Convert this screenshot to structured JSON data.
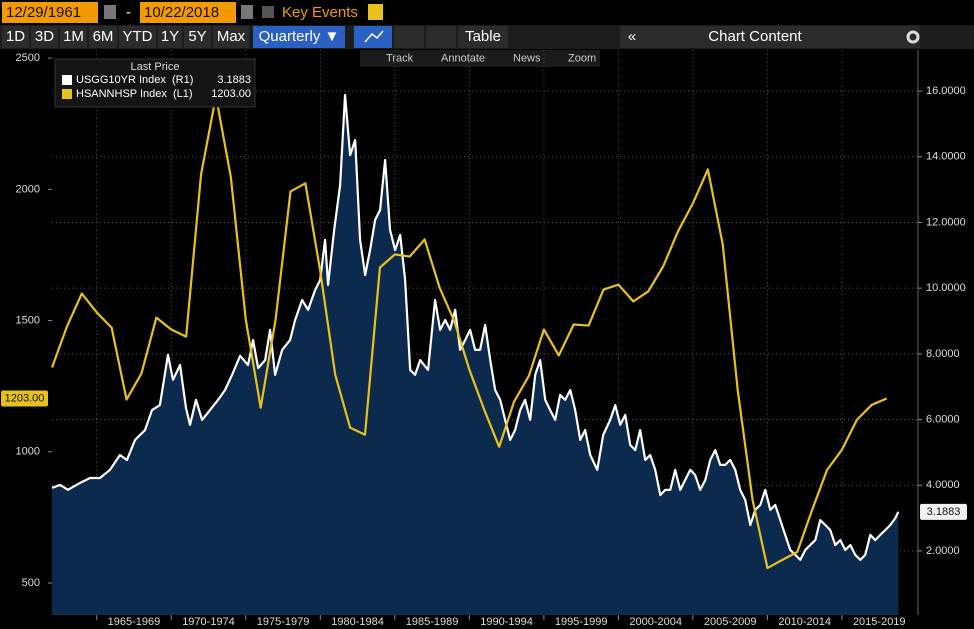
{
  "toolbar": {
    "start_date": "12/29/1961",
    "separator": "-",
    "end_date": "10/22/2018",
    "key_events": "Key Events",
    "ranges": [
      "1D",
      "3D",
      "1M",
      "6M",
      "YTD",
      "1Y",
      "5Y",
      "Max"
    ],
    "frequency": "Quarterly ▼",
    "table": "Table",
    "collapse": "«",
    "chart_content": "Chart Content",
    "tools": [
      "Track",
      "Annotate",
      "News",
      "Zoom"
    ]
  },
  "chart_data": {
    "type": "line",
    "legend_title": "Last Price",
    "xlim": [
      1962,
      2020.1
    ],
    "xticks": [
      {
        "value": 1967.5,
        "label": "1965-1969"
      },
      {
        "value": 1972.5,
        "label": "1970-1974"
      },
      {
        "value": 1977.5,
        "label": "1975-1979"
      },
      {
        "value": 1982.5,
        "label": "1980-1984"
      },
      {
        "value": 1987.5,
        "label": "1985-1989"
      },
      {
        "value": 1992.5,
        "label": "1990-1994"
      },
      {
        "value": 1997.5,
        "label": "1995-1999"
      },
      {
        "value": 2002.5,
        "label": "2000-2004"
      },
      {
        "value": 2007.5,
        "label": "2005-2009"
      },
      {
        "value": 2012.5,
        "label": "2010-2014"
      },
      {
        "value": 2017.5,
        "label": "2015-2019"
      }
    ],
    "ylim": [
      378,
      2531
    ],
    "yticks": [
      500,
      1000,
      1500,
      2000,
      2500
    ],
    "y2lim": [
      0.05,
      17.25
    ],
    "y2ticks": [
      {
        "value": 2,
        "label": "2.0000"
      },
      {
        "value": 4,
        "label": "4.0000"
      },
      {
        "value": 6,
        "label": "6.0000"
      },
      {
        "value": 8,
        "label": "8.0000"
      },
      {
        "value": 10,
        "label": "10.0000"
      },
      {
        "value": 12,
        "label": "12.0000"
      },
      {
        "value": 14,
        "label": "14.0000"
      },
      {
        "value": 16,
        "label": "16.0000"
      }
    ],
    "grid": true,
    "series": [
      {
        "name": "USGG10YR Index  (R1)",
        "color": "#ffffff",
        "axis": "y2",
        "area": true,
        "last_price": 3.1883,
        "x": [
          1962.0,
          1962.54,
          1963.07,
          1963.88,
          1964.55,
          1965.22,
          1965.89,
          1966.56,
          1967.03,
          1967.57,
          1968.24,
          1968.71,
          1969.24,
          1969.78,
          1970.12,
          1970.59,
          1970.99,
          1971.26,
          1971.66,
          1972.07,
          1972.6,
          1973.14,
          1973.61,
          1974.08,
          1974.62,
          1975.15,
          1975.49,
          1975.83,
          1976.3,
          1976.63,
          1976.97,
          1977.44,
          1977.97,
          1978.31,
          1978.78,
          1979.18,
          1979.65,
          1979.99,
          1980.32,
          1980.52,
          1980.93,
          1981.33,
          1981.66,
          1982.0,
          1982.34,
          1982.67,
          1983.01,
          1983.34,
          1983.68,
          1984.01,
          1984.35,
          1984.68,
          1985.02,
          1985.36,
          1985.69,
          1986.03,
          1986.36,
          1986.7,
          1987.23,
          1987.7,
          1988.04,
          1988.38,
          1988.71,
          1989.05,
          1989.38,
          1989.72,
          1990.05,
          1990.39,
          1990.72,
          1991.06,
          1991.4,
          1991.73,
          1992.07,
          1992.4,
          1992.74,
          1993.07,
          1993.41,
          1993.74,
          1994.08,
          1994.42,
          1994.75,
          1995.09,
          1995.42,
          1995.76,
          1996.09,
          1996.43,
          1996.77,
          1997.1,
          1997.44,
          1997.77,
          1998.11,
          1998.58,
          1998.98,
          1999.45,
          1999.79,
          2000.12,
          2000.46,
          2000.79,
          2001.13,
          2001.46,
          2001.8,
          2002.13,
          2002.47,
          2002.81,
          2003.14,
          2003.48,
          2003.81,
          2004.15,
          2004.48,
          2004.82,
          2005.15,
          2005.49,
          2005.83,
          2006.16,
          2006.5,
          2006.83,
          2007.17,
          2007.5,
          2007.84,
          2008.17,
          2008.51,
          2008.85,
          2009.18,
          2009.52,
          2009.85,
          2010.19,
          2010.52,
          2010.86,
          2011.19,
          2011.53,
          2011.87,
          2012.2,
          2012.54,
          2012.87,
          2013.21,
          2013.54,
          2013.88,
          2014.21,
          2014.55,
          2014.89,
          2015.22,
          2015.56,
          2015.89,
          2016.23,
          2016.56,
          2016.9,
          2017.23,
          2017.57,
          2017.91,
          2018.24,
          2018.58,
          2018.78
        ],
        "values": [
          3.92,
          4.01,
          3.86,
          4.07,
          4.22,
          4.22,
          4.47,
          4.92,
          4.77,
          5.38,
          5.68,
          6.29,
          6.44,
          7.97,
          7.21,
          7.66,
          6.35,
          5.84,
          6.6,
          5.99,
          6.29,
          6.6,
          6.9,
          7.36,
          7.94,
          7.66,
          8.42,
          7.57,
          7.81,
          8.73,
          7.36,
          8.12,
          8.42,
          9.03,
          9.64,
          9.34,
          9.94,
          10.25,
          11.47,
          10.1,
          11.77,
          13.14,
          15.88,
          14.05,
          14.51,
          11.47,
          10.4,
          11.16,
          12.08,
          12.38,
          13.9,
          11.77,
          11.16,
          11.62,
          10.25,
          7.51,
          7.36,
          7.81,
          7.51,
          9.64,
          8.73,
          9.03,
          8.73,
          9.34,
          8.12,
          8.42,
          8.73,
          8.12,
          8.12,
          8.88,
          7.81,
          6.9,
          6.6,
          5.99,
          5.38,
          5.68,
          6.29,
          6.6,
          5.99,
          7.36,
          7.81,
          6.6,
          6.29,
          5.99,
          6.75,
          6.6,
          6.9,
          6.29,
          5.38,
          5.68,
          4.92,
          4.47,
          5.53,
          5.99,
          6.44,
          5.84,
          6.14,
          5.23,
          5.07,
          5.68,
          4.77,
          4.92,
          4.47,
          3.7,
          3.86,
          3.86,
          4.47,
          3.86,
          4.16,
          4.47,
          4.31,
          3.86,
          4.16,
          4.77,
          5.07,
          4.62,
          4.62,
          4.77,
          4.47,
          3.86,
          3.55,
          2.79,
          3.25,
          3.4,
          3.86,
          3.25,
          3.4,
          2.94,
          2.49,
          2.03,
          1.88,
          1.73,
          2.03,
          2.18,
          2.33,
          2.94,
          2.79,
          2.64,
          2.18,
          2.33,
          2.03,
          2.18,
          1.88,
          1.73,
          1.88,
          2.49,
          2.33,
          2.49,
          2.64,
          2.79,
          3.0,
          3.1883
        ]
      },
      {
        "name": "HSANNHSP Index  (L1)",
        "color": "#e8c21a",
        "axis": "y",
        "area": false,
        "last_price": {
          "value": 1203,
          "label": "1203.00"
        },
        "x": [
          1962,
          1963,
          1964,
          1965,
          1966,
          1967,
          1968,
          1969,
          1970,
          1971,
          1972,
          1973,
          1974,
          1975,
          1976,
          1977,
          1978,
          1979,
          1980,
          1981,
          1982,
          1983,
          1984,
          1985,
          1986,
          1987,
          1988,
          1989,
          1990,
          1991,
          1992,
          1993,
          1994,
          1995,
          1996,
          1997,
          1998,
          1999,
          2000,
          2001,
          2002,
          2003,
          2004,
          2005,
          2006,
          2007,
          2008,
          2009,
          2010,
          2011,
          2012,
          2013,
          2014,
          2015,
          2016,
          2017,
          2018
        ],
        "values": [
          1321,
          1477,
          1603,
          1531,
          1473,
          1199,
          1298,
          1511,
          1466,
          1439,
          2057,
          2355,
          2046,
          1504,
          1168,
          1504,
          1992,
          2023,
          1687,
          1294,
          1092,
          1065,
          1702,
          1752,
          1744,
          1809,
          1626,
          1496,
          1313,
          1160,
          1019,
          1191,
          1290,
          1466,
          1367,
          1485,
          1481,
          1618,
          1637,
          1573,
          1611,
          1706,
          1840,
          1947,
          2076,
          1790,
          1237,
          817,
          557,
          588,
          618,
          779,
          931,
          1008,
          1122,
          1179,
          1203
        ]
      }
    ]
  }
}
